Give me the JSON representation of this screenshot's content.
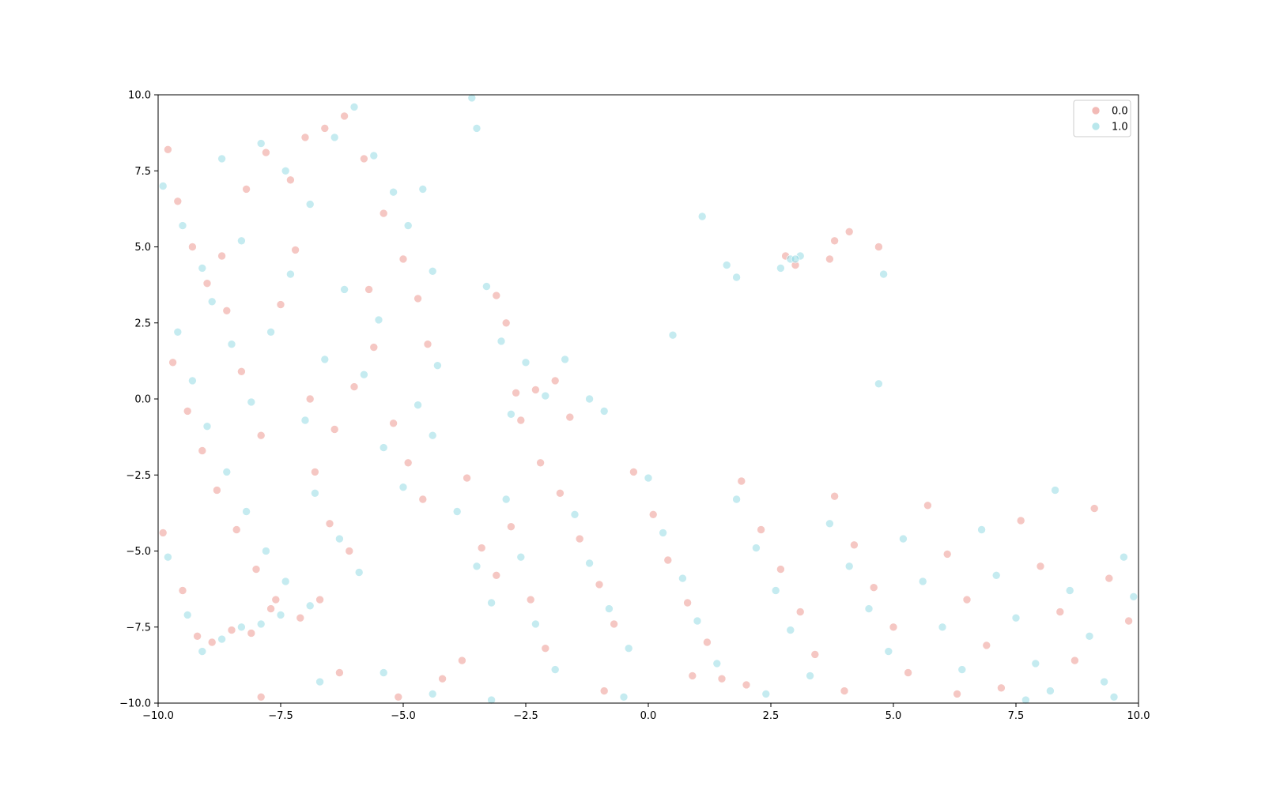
{
  "chart_data": {
    "type": "scatter",
    "title": "",
    "xlabel": "",
    "ylabel": "",
    "xlim": [
      -10,
      10
    ],
    "ylim": [
      -10,
      10
    ],
    "grid": false,
    "legend_position": "upper-right",
    "x_ticks": [
      -10,
      -7.5,
      -5,
      -2.5,
      0,
      2.5,
      5,
      7.5,
      10
    ],
    "y_ticks": [
      -10,
      -7.5,
      -5,
      -2.5,
      0,
      2.5,
      5,
      7.5,
      10
    ],
    "x_tick_labels": [
      "−10.0",
      "−7.5",
      "−5.0",
      "−2.5",
      "0.0",
      "2.5",
      "5.0",
      "7.5",
      "10.0"
    ],
    "y_tick_labels": [
      "−10.0",
      "−7.5",
      "−5.0",
      "−2.5",
      "0.0",
      "2.5",
      "5.0",
      "7.5",
      "10.0"
    ],
    "series": [
      {
        "name": "0.0",
        "color": "#e8827a",
        "points": [
          [
            -9.8,
            8.2
          ],
          [
            -9.6,
            6.5
          ],
          [
            -9.3,
            5.0
          ],
          [
            -9.0,
            3.8
          ],
          [
            -8.6,
            2.9
          ],
          [
            -8.2,
            6.9
          ],
          [
            -7.8,
            8.1
          ],
          [
            -7.3,
            7.2
          ],
          [
            -7.0,
            8.6
          ],
          [
            -6.6,
            8.9
          ],
          [
            -6.2,
            9.3
          ],
          [
            -5.8,
            7.9
          ],
          [
            -5.4,
            6.1
          ],
          [
            -5.0,
            4.6
          ],
          [
            -4.7,
            3.3
          ],
          [
            -4.5,
            1.8
          ],
          [
            -9.7,
            1.2
          ],
          [
            -9.4,
            -0.4
          ],
          [
            -9.1,
            -1.7
          ],
          [
            -8.8,
            -3.0
          ],
          [
            -8.4,
            -4.3
          ],
          [
            -8.0,
            -5.6
          ],
          [
            -7.6,
            -6.6
          ],
          [
            -7.1,
            -7.2
          ],
          [
            -6.8,
            -2.4
          ],
          [
            -6.4,
            -1.0
          ],
          [
            -6.0,
            0.4
          ],
          [
            -5.6,
            1.7
          ],
          [
            -5.2,
            -0.8
          ],
          [
            -4.9,
            -2.1
          ],
          [
            -4.6,
            -3.3
          ],
          [
            -8.7,
            4.7
          ],
          [
            -8.3,
            0.9
          ],
          [
            -7.9,
            -1.2
          ],
          [
            -7.5,
            3.1
          ],
          [
            -7.2,
            4.9
          ],
          [
            -6.9,
            0.0
          ],
          [
            -6.5,
            -4.1
          ],
          [
            -6.1,
            -5.0
          ],
          [
            -5.7,
            3.6
          ],
          [
            -9.9,
            -4.4
          ],
          [
            -9.5,
            -6.3
          ],
          [
            -9.2,
            -7.8
          ],
          [
            -8.9,
            -8.0
          ],
          [
            -8.5,
            -7.6
          ],
          [
            -8.1,
            -7.7
          ],
          [
            -7.7,
            -6.9
          ],
          [
            -6.7,
            -6.6
          ],
          [
            -3.7,
            -2.6
          ],
          [
            -3.4,
            -4.9
          ],
          [
            -3.1,
            -5.8
          ],
          [
            -2.8,
            -4.2
          ],
          [
            -2.4,
            -6.6
          ],
          [
            -2.1,
            -8.2
          ],
          [
            -1.8,
            -3.1
          ],
          [
            -1.4,
            -4.6
          ],
          [
            -1.0,
            -6.1
          ],
          [
            -0.7,
            -7.4
          ],
          [
            -0.3,
            -2.4
          ],
          [
            0.1,
            -3.8
          ],
          [
            0.4,
            -5.3
          ],
          [
            0.8,
            -6.7
          ],
          [
            1.2,
            -8.0
          ],
          [
            1.5,
            -9.2
          ],
          [
            1.9,
            -2.7
          ],
          [
            2.3,
            -4.3
          ],
          [
            2.7,
            -5.6
          ],
          [
            3.1,
            -7.0
          ],
          [
            3.4,
            -8.4
          ],
          [
            3.8,
            -3.2
          ],
          [
            4.2,
            -4.8
          ],
          [
            4.6,
            -6.2
          ],
          [
            5.0,
            -7.5
          ],
          [
            5.3,
            -9.0
          ],
          [
            5.7,
            -3.5
          ],
          [
            6.1,
            -5.1
          ],
          [
            6.5,
            -6.6
          ],
          [
            6.9,
            -8.1
          ],
          [
            7.2,
            -9.5
          ],
          [
            7.6,
            -4.0
          ],
          [
            8.0,
            -5.5
          ],
          [
            8.4,
            -7.0
          ],
          [
            8.7,
            -8.6
          ],
          [
            9.1,
            -3.6
          ],
          [
            9.4,
            -5.9
          ],
          [
            9.8,
            -7.3
          ],
          [
            4.0,
            -9.6
          ],
          [
            2.0,
            -9.4
          ],
          [
            -3.1,
            3.4
          ],
          [
            -2.9,
            2.5
          ],
          [
            -2.7,
            0.2
          ],
          [
            -2.3,
            0.3
          ],
          [
            -1.9,
            0.6
          ],
          [
            -1.6,
            -0.6
          ],
          [
            -2.6,
            -0.7
          ],
          [
            -2.2,
            -2.1
          ],
          [
            2.8,
            4.7
          ],
          [
            3.0,
            4.4
          ],
          [
            3.7,
            4.6
          ],
          [
            4.1,
            5.5
          ],
          [
            4.7,
            5.0
          ],
          [
            3.8,
            5.2
          ],
          [
            -6.3,
            -9.0
          ],
          [
            -5.1,
            -9.8
          ],
          [
            -4.2,
            -9.2
          ],
          [
            -7.9,
            -9.8
          ],
          [
            -3.8,
            -8.6
          ],
          [
            -0.9,
            -9.6
          ],
          [
            0.9,
            -9.1
          ],
          [
            6.3,
            -9.7
          ]
        ]
      },
      {
        "name": "1.0",
        "color": "#7fd3dd",
        "points": [
          [
            -9.9,
            7.0
          ],
          [
            -9.5,
            5.7
          ],
          [
            -9.1,
            4.3
          ],
          [
            -8.7,
            7.9
          ],
          [
            -8.3,
            5.2
          ],
          [
            -7.9,
            8.4
          ],
          [
            -7.4,
            7.5
          ],
          [
            -6.9,
            6.4
          ],
          [
            -6.4,
            8.6
          ],
          [
            -6.0,
            9.6
          ],
          [
            -5.6,
            8.0
          ],
          [
            -5.2,
            6.8
          ],
          [
            -4.9,
            5.7
          ],
          [
            -4.6,
            6.9
          ],
          [
            -4.4,
            4.2
          ],
          [
            -4.3,
            1.1
          ],
          [
            -9.6,
            2.2
          ],
          [
            -9.3,
            0.6
          ],
          [
            -9.0,
            -0.9
          ],
          [
            -8.6,
            -2.4
          ],
          [
            -8.2,
            -3.7
          ],
          [
            -7.8,
            -5.0
          ],
          [
            -7.4,
            -6.0
          ],
          [
            -7.0,
            -0.7
          ],
          [
            -6.6,
            1.3
          ],
          [
            -6.2,
            3.6
          ],
          [
            -5.8,
            0.8
          ],
          [
            -5.4,
            -1.6
          ],
          [
            -5.0,
            -2.9
          ],
          [
            -4.7,
            -0.2
          ],
          [
            -4.4,
            -1.2
          ],
          [
            -8.9,
            3.2
          ],
          [
            -8.5,
            1.8
          ],
          [
            -8.1,
            -0.1
          ],
          [
            -7.7,
            2.2
          ],
          [
            -7.3,
            4.1
          ],
          [
            -6.8,
            -3.1
          ],
          [
            -6.3,
            -4.6
          ],
          [
            -5.9,
            -5.7
          ],
          [
            -5.5,
            2.6
          ],
          [
            -9.8,
            -5.2
          ],
          [
            -9.4,
            -7.1
          ],
          [
            -9.1,
            -8.3
          ],
          [
            -8.7,
            -7.9
          ],
          [
            -8.3,
            -7.5
          ],
          [
            -7.9,
            -7.4
          ],
          [
            -7.5,
            -7.1
          ],
          [
            -6.9,
            -6.8
          ],
          [
            -3.9,
            -3.7
          ],
          [
            -3.5,
            -5.5
          ],
          [
            -3.2,
            -6.7
          ],
          [
            -2.9,
            -3.3
          ],
          [
            -2.6,
            -5.2
          ],
          [
            -2.3,
            -7.4
          ],
          [
            -1.9,
            -8.9
          ],
          [
            -1.5,
            -3.8
          ],
          [
            -1.2,
            -5.4
          ],
          [
            -0.8,
            -6.9
          ],
          [
            -0.4,
            -8.2
          ],
          [
            0.0,
            -2.6
          ],
          [
            0.3,
            -4.4
          ],
          [
            0.7,
            -5.9
          ],
          [
            1.0,
            -7.3
          ],
          [
            1.4,
            -8.7
          ],
          [
            1.8,
            -3.3
          ],
          [
            2.2,
            -4.9
          ],
          [
            2.6,
            -6.3
          ],
          [
            2.9,
            -7.6
          ],
          [
            3.3,
            -9.1
          ],
          [
            3.7,
            -4.1
          ],
          [
            4.1,
            -5.5
          ],
          [
            4.5,
            -6.9
          ],
          [
            4.9,
            -8.3
          ],
          [
            5.2,
            -4.6
          ],
          [
            5.6,
            -6.0
          ],
          [
            6.0,
            -7.5
          ],
          [
            6.4,
            -8.9
          ],
          [
            6.8,
            -4.3
          ],
          [
            7.1,
            -5.8
          ],
          [
            7.5,
            -7.2
          ],
          [
            7.9,
            -8.7
          ],
          [
            8.3,
            -3.0
          ],
          [
            8.6,
            -6.3
          ],
          [
            9.0,
            -7.8
          ],
          [
            9.3,
            -9.3
          ],
          [
            9.7,
            -5.2
          ],
          [
            9.9,
            -6.5
          ],
          [
            8.2,
            -9.6
          ],
          [
            -3.5,
            8.9
          ],
          [
            -3.6,
            9.9
          ],
          [
            -3.3,
            3.7
          ],
          [
            -3.0,
            1.9
          ],
          [
            -2.8,
            -0.5
          ],
          [
            -2.5,
            1.2
          ],
          [
            -2.1,
            0.1
          ],
          [
            -1.7,
            1.3
          ],
          [
            -1.2,
            0.0
          ],
          [
            -0.9,
            -0.4
          ],
          [
            1.1,
            6.0
          ],
          [
            0.5,
            2.1
          ],
          [
            1.6,
            4.4
          ],
          [
            1.8,
            4.0
          ],
          [
            2.9,
            4.6
          ],
          [
            3.1,
            4.7
          ],
          [
            2.7,
            4.3
          ],
          [
            4.8,
            4.1
          ],
          [
            4.7,
            0.5
          ],
          [
            3.0,
            4.6
          ],
          [
            -6.7,
            -9.3
          ],
          [
            -5.4,
            -9.0
          ],
          [
            -4.4,
            -9.7
          ],
          [
            -3.2,
            -9.9
          ],
          [
            -0.5,
            -9.8
          ],
          [
            2.4,
            -9.7
          ],
          [
            7.7,
            -9.9
          ],
          [
            9.5,
            -9.8
          ]
        ]
      }
    ]
  }
}
